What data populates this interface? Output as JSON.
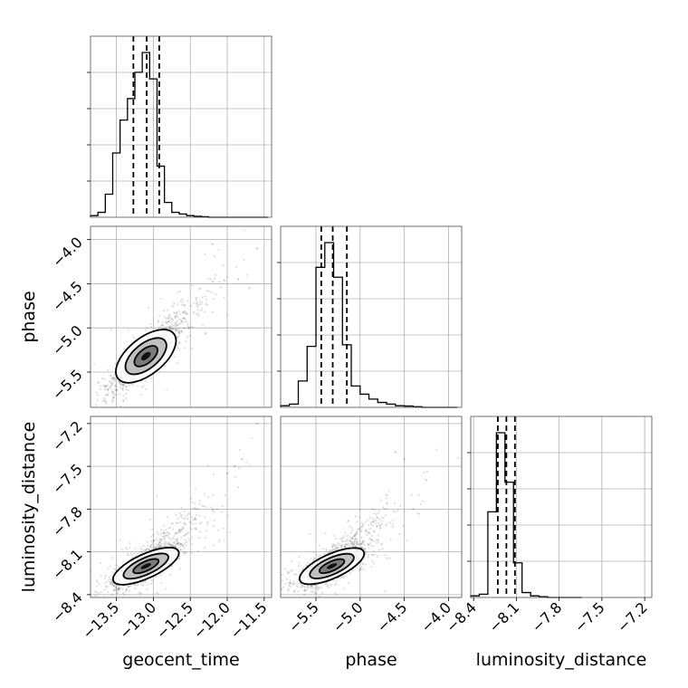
{
  "chart_data": {
    "type": "corner",
    "parameters": [
      {
        "name": "geocent_time",
        "label": "geocent_time",
        "range": [
          -13.85,
          -11.4
        ],
        "ticks": [
          -13.5,
          -13.0,
          -12.5,
          -12.0,
          -11.5
        ],
        "tick_labels": [
          "−13.5",
          "−13.0",
          "−12.5",
          "−12.0",
          "−11.5"
        ],
        "quantiles": [
          -13.27,
          -13.09,
          -12.92
        ],
        "hist_bins": [
          -13.85,
          -13.75,
          -13.65,
          -13.55,
          -13.45,
          -13.35,
          -13.25,
          -13.15,
          -13.05,
          -12.95,
          -12.85,
          -12.75,
          -12.65,
          -12.55,
          -12.45,
          -12.35,
          -12.25,
          -12.15,
          -12.05,
          -11.95,
          -11.85,
          -11.75,
          -11.65,
          -11.55,
          -11.45
        ],
        "hist_counts": [
          1,
          3,
          14,
          39,
          59,
          72,
          88,
          100,
          84,
          31,
          9,
          3,
          2,
          1,
          0.6,
          0.3,
          0,
          0,
          0,
          0,
          0,
          0,
          0,
          0
        ]
      },
      {
        "name": "phase",
        "label": "phase",
        "range": [
          -5.9,
          -3.85
        ],
        "ticks": [
          -5.5,
          -5.0,
          -4.5,
          -4.0
        ],
        "tick_labels": [
          "−5.5",
          "−5.0",
          "−4.5",
          "−4.0"
        ],
        "quantiles": [
          -5.44,
          -5.31,
          -5.15
        ],
        "hist_bins": [
          -5.9,
          -5.8,
          -5.7,
          -5.6,
          -5.5,
          -5.4,
          -5.3,
          -5.2,
          -5.1,
          -5.0,
          -4.9,
          -4.8,
          -4.7,
          -4.6,
          -4.5,
          -4.4,
          -4.3,
          -4.2,
          -4.1,
          -4.0,
          -3.9
        ],
        "hist_counts": [
          1,
          2,
          16,
          37,
          85,
          100,
          79,
          38,
          13,
          8,
          5,
          3,
          2,
          1,
          0.8,
          0.4,
          0,
          0,
          0,
          0
        ]
      },
      {
        "name": "luminosity_distance",
        "label": "luminosity_distance",
        "range": [
          -8.42,
          -7.15
        ],
        "ticks": [
          -8.4,
          -8.1,
          -7.8,
          -7.5,
          -7.2
        ],
        "tick_labels": [
          "−8.4",
          "−8.1",
          "−7.8",
          "−7.5",
          "−7.2"
        ],
        "quantiles": [
          -8.23,
          -8.17,
          -8.11
        ],
        "hist_bins": [
          -8.42,
          -8.36,
          -8.3,
          -8.24,
          -8.18,
          -8.12,
          -8.06,
          -8.0,
          -7.94,
          -7.88,
          -7.82,
          -7.76,
          -7.7,
          -7.64
        ],
        "hist_counts": [
          1,
          2,
          52,
          100,
          70,
          21,
          3,
          1,
          0.5,
          0,
          0,
          0,
          0
        ]
      }
    ],
    "scatter_pairs": [
      {
        "x": "geocent_time",
        "y": "phase",
        "center": [
          -13.1,
          -5.32
        ],
        "corr": 0.88,
        "spread": [
          0.22,
          0.17
        ],
        "tail": [
          [
            -11.85,
            -4.45
          ],
          [
            -12.2,
            -4.05
          ],
          [
            -11.6,
            -4.1
          ],
          [
            -11.7,
            -4.55
          ]
        ]
      },
      {
        "x": "geocent_time",
        "y": "luminosity_distance",
        "center": [
          -13.1,
          -8.2
        ],
        "corr": 0.75,
        "spread": [
          0.22,
          0.07
        ],
        "tail": [
          [
            -11.6,
            -7.2
          ],
          [
            -11.8,
            -7.45
          ],
          [
            -11.9,
            -7.5
          ],
          [
            -12.0,
            -7.55
          ]
        ]
      },
      {
        "x": "phase",
        "y": "luminosity_distance",
        "center": [
          -5.32,
          -8.2
        ],
        "corr": 0.72,
        "spread": [
          0.18,
          0.07
        ],
        "tail": [
          [
            -4.6,
            -7.4
          ],
          [
            -4.5,
            -7.45
          ],
          [
            -4.7,
            -7.7
          ],
          [
            -4.4,
            -7.8
          ]
        ]
      }
    ],
    "grid": true
  }
}
